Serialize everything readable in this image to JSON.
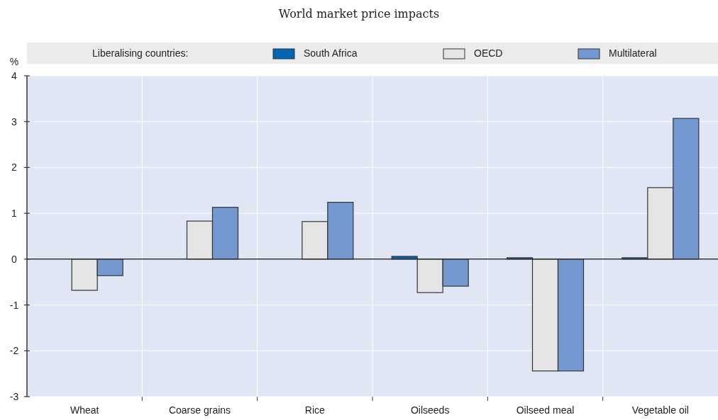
{
  "chart_data": {
    "type": "bar",
    "title": "World market price impacts",
    "ylabel": "%",
    "legend_title": "Liberalising countries:",
    "legend": "top",
    "categories": [
      "Wheat",
      "Coarse grains",
      "Rice",
      "Oilseeds",
      "Oilseed meal",
      "Vegetable oil"
    ],
    "series": [
      {
        "name": "South Africa",
        "color": "#0066b3",
        "values": [
          null,
          null,
          null,
          0.06,
          0.03,
          0.03
        ]
      },
      {
        "name": "OECD",
        "color": "#e5e5e5",
        "values": [
          -0.68,
          0.83,
          0.82,
          -0.73,
          -2.44,
          1.56
        ]
      },
      {
        "name": "Multilateral",
        "color": "#7399d0",
        "values": [
          -0.36,
          1.13,
          1.24,
          -0.59,
          -2.44,
          3.07
        ]
      }
    ],
    "ylim": [
      -3,
      4
    ],
    "yticks": [
      -3,
      -2,
      -1,
      0,
      1,
      2,
      3,
      4
    ],
    "grid": true
  }
}
